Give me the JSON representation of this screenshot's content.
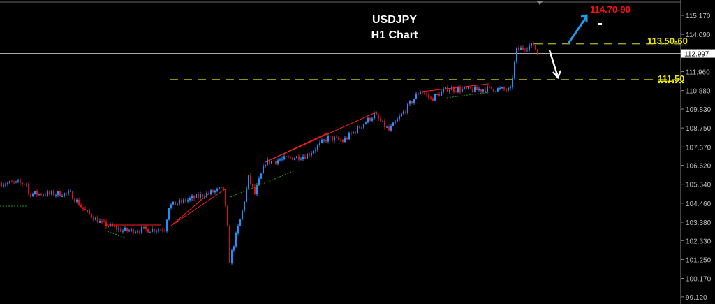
{
  "chart_data": {
    "type": "candlestick",
    "symbol": "USDJPY",
    "timeframe": "H1 Chart",
    "y_ticks": [
      "115.170",
      "114.090",
      "112.997",
      "111.960",
      "110.880",
      "109.830",
      "108.750",
      "107.670",
      "106.620",
      "105.540",
      "104.460",
      "103.380",
      "102.330",
      "101.250",
      "100.170",
      "99.120"
    ],
    "ylim": [
      99.12,
      115.6
    ],
    "current_price": "112.997",
    "approx_close_path": [
      [
        0,
        105.6
      ],
      [
        12,
        105.6
      ],
      [
        13,
        105.0
      ],
      [
        33,
        105.0
      ],
      [
        40,
        104.0
      ],
      [
        48,
        103.3
      ],
      [
        58,
        102.9
      ],
      [
        78,
        103.0
      ],
      [
        80,
        104.3
      ],
      [
        106,
        105.3
      ],
      [
        108,
        103.0
      ],
      [
        109,
        101.2
      ],
      [
        115,
        104.0
      ],
      [
        118,
        105.9
      ],
      [
        121,
        105.0
      ],
      [
        126,
        106.8
      ],
      [
        146,
        107.2
      ],
      [
        156,
        108.2
      ],
      [
        163,
        108.0
      ],
      [
        178,
        109.5
      ],
      [
        185,
        108.6
      ],
      [
        193,
        109.8
      ],
      [
        200,
        110.9
      ],
      [
        205,
        110.4
      ],
      [
        213,
        111.0
      ],
      [
        226,
        110.9
      ],
      [
        233,
        111.0
      ],
      [
        243,
        110.9
      ],
      [
        246,
        113.2
      ],
      [
        254,
        113.5
      ],
      [
        256,
        113.0
      ]
    ],
    "levels": [
      {
        "label": "113.50-60",
        "value": 113.55,
        "color": "#a0a020"
      },
      {
        "label": "111.50",
        "value": 111.5,
        "color": "#e8e800"
      }
    ],
    "target": {
      "label": "114.70-90",
      "color": "#ff1010"
    },
    "colors": {
      "up": "#1e90ff",
      "down": "#e01010",
      "trend": "#ff2020",
      "support": "#20a020"
    },
    "grid": false
  }
}
